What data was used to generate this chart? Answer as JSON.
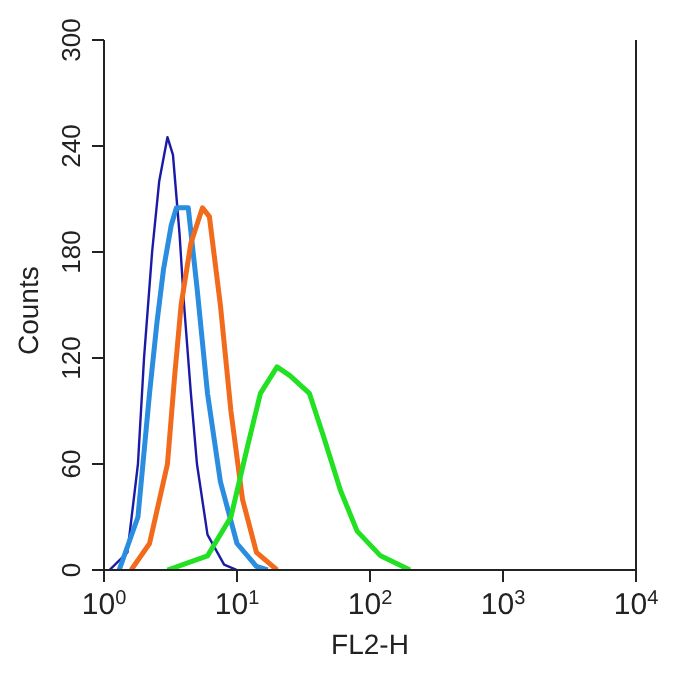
{
  "chart_data": {
    "type": "line",
    "xlabel": "FL2-H",
    "ylabel": "Counts",
    "log": "x",
    "marker": "none",
    "xlim": [
      1,
      10000
    ],
    "ylim": [
      0,
      300
    ],
    "xticks": [
      {
        "value": 1,
        "label": "10$^{0}$"
      },
      {
        "value": 10,
        "label": "10$^{1}$"
      },
      {
        "value": 100,
        "label": "10$^{2}$"
      },
      {
        "value": 1000,
        "label": "10$^{3}$"
      },
      {
        "value": 10000,
        "label": "10$^{4}$"
      }
    ],
    "yticks": [
      0,
      60,
      120,
      180,
      240,
      300
    ],
    "series": [
      {
        "color": "#1a1aa6",
        "x": [
          1.1,
          1.5,
          1.8,
          2.0,
          2.3,
          2.6,
          3.0,
          3.3,
          3.7,
          4.0,
          4.5,
          5.0,
          6.0,
          8.0,
          10
        ],
        "values": [
          0,
          10,
          60,
          120,
          180,
          220,
          245,
          235,
          190,
          150,
          100,
          60,
          20,
          3,
          0
        ]
      },
      {
        "color": "#2a8de0",
        "x": [
          1.3,
          1.8,
          2.2,
          2.5,
          2.8,
          3.2,
          3.5,
          4.3,
          5.0,
          6.0,
          7.5,
          10,
          14,
          17
        ],
        "values": [
          0,
          30,
          100,
          140,
          170,
          195,
          205,
          205,
          160,
          100,
          50,
          15,
          2,
          0
        ]
      },
      {
        "color": "#f26a1b",
        "x": [
          1.6,
          2.2,
          3.0,
          3.4,
          3.8,
          4.5,
          5.5,
          6.2,
          7.5,
          9,
          11,
          14,
          20
        ],
        "values": [
          0,
          15,
          60,
          110,
          150,
          185,
          205,
          200,
          150,
          90,
          40,
          10,
          0
        ]
      },
      {
        "color": "#22e022",
        "x": [
          3,
          6,
          9,
          12,
          15,
          20,
          25,
          35,
          45,
          60,
          80,
          120,
          200
        ],
        "values": [
          0,
          8,
          30,
          70,
          100,
          115,
          110,
          100,
          75,
          45,
          22,
          8,
          0
        ]
      }
    ]
  }
}
